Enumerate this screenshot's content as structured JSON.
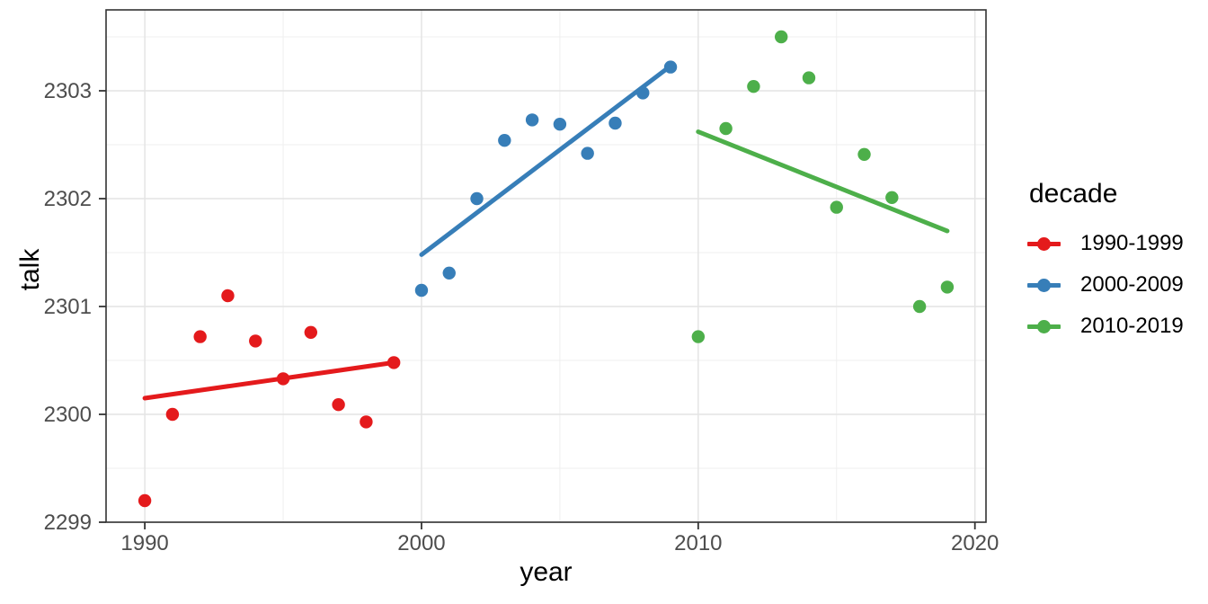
{
  "chart_data": {
    "type": "scatter",
    "title": "",
    "xlabel": "year",
    "ylabel": "talk",
    "legend": {
      "title": "decade",
      "position": "right",
      "entries": [
        "1990-1999",
        "2000-2009",
        "2010-2019"
      ]
    },
    "axes": {
      "x_ticks": [
        1990,
        2000,
        2010,
        2020
      ],
      "x_minor": [
        1995,
        2005,
        2015
      ],
      "y_ticks": [
        2299,
        2300,
        2301,
        2302,
        2303
      ],
      "y_minor": [
        2299.5,
        2300.5,
        2301.5,
        2302.5,
        2303.5
      ],
      "xlim": [
        1988.6,
        2020.4
      ],
      "ylim": [
        2299,
        2303.75
      ],
      "grid": true
    },
    "series": [
      {
        "name": "1990-1999",
        "color": "#E41A1C",
        "points": [
          [
            1990,
            2299.2
          ],
          [
            1991,
            2300.0
          ],
          [
            1992,
            2300.72
          ],
          [
            1993,
            2301.1
          ],
          [
            1994,
            2300.68
          ],
          [
            1995,
            2300.33
          ],
          [
            1996,
            2300.76
          ],
          [
            1997,
            2300.09
          ],
          [
            1998,
            2299.93
          ],
          [
            1999,
            2300.48
          ]
        ],
        "trend": {
          "x": [
            1990,
            1999
          ],
          "y": [
            2300.15,
            2300.48
          ]
        }
      },
      {
        "name": "2000-2009",
        "color": "#377EB8",
        "points": [
          [
            2000,
            2301.15
          ],
          [
            2001,
            2301.31
          ],
          [
            2002,
            2302.0
          ],
          [
            2003,
            2302.54
          ],
          [
            2004,
            2302.73
          ],
          [
            2005,
            2302.69
          ],
          [
            2006,
            2302.42
          ],
          [
            2007,
            2302.7
          ],
          [
            2008,
            2302.98
          ],
          [
            2009,
            2303.22
          ]
        ],
        "trend": {
          "x": [
            2000,
            2009
          ],
          "y": [
            2301.48,
            2303.23
          ]
        }
      },
      {
        "name": "2010-2019",
        "color": "#4DAF4A",
        "points": [
          [
            2010,
            2300.72
          ],
          [
            2011,
            2302.65
          ],
          [
            2012,
            2303.04
          ],
          [
            2013,
            2303.5
          ],
          [
            2014,
            2303.12
          ],
          [
            2015,
            2301.92
          ],
          [
            2016,
            2302.41
          ],
          [
            2017,
            2302.01
          ],
          [
            2018,
            2301.0
          ],
          [
            2019,
            2301.18
          ]
        ],
        "trend": {
          "x": [
            2010,
            2019
          ],
          "y": [
            2302.62,
            2301.7
          ]
        }
      }
    ]
  },
  "style": {
    "background": "#FFFFFF",
    "grid_major": "#E4E4E4",
    "grid_minor": "#EFEFEF",
    "panel_border": "#333333",
    "tick_color": "#333333",
    "tick_label_color": "#4D4D4D",
    "text_color": "#000000",
    "point_radius": 7.2,
    "trend_width": 5
  }
}
